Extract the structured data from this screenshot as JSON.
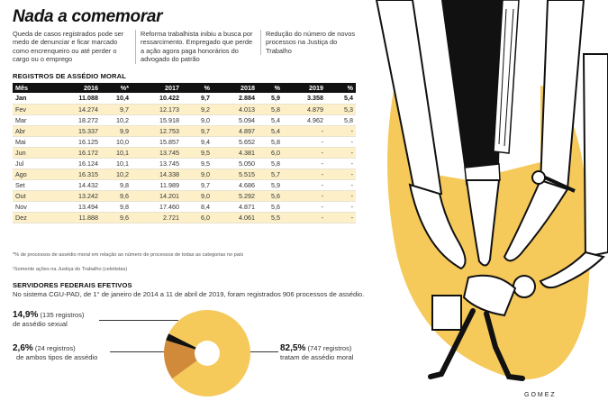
{
  "title": "Nada a comemorar",
  "intro": [
    "Queda de casos registrados pode ser medo de denunciar e ficar marcado como encrenqueiro ou até perder o cargo ou o emprego",
    "Reforma trabalhista inibiu a busca por ressarcimento. Empregado que perde a ação agora paga honorários do advogado do patrão",
    "Redução do número de novos processos na Justiça do Trabalho"
  ],
  "table": {
    "heading": "REGISTROS DE ASSÉDIO MORAL",
    "columns": [
      "Mês",
      "2016",
      "%*",
      "2017",
      "%",
      "2018",
      "%",
      "2019",
      "%"
    ],
    "rows": [
      [
        "Jan",
        "11.088",
        "10,4",
        "10.422",
        "9,7",
        "2.884",
        "5,9",
        "3.358",
        "5,4"
      ],
      [
        "Fev",
        "14.274",
        "9,7",
        "12.173",
        "9,2",
        "4.013",
        "5,8",
        "4.879",
        "5,3"
      ],
      [
        "Mar",
        "18.272",
        "10,2",
        "15.918",
        "9,0",
        "5.094",
        "5,4",
        "4.962",
        "5,8"
      ],
      [
        "Abr",
        "15.337",
        "9,9",
        "12.753",
        "9,7",
        "4.897",
        "5,4",
        "-",
        "-"
      ],
      [
        "Mai",
        "16.125",
        "10,0",
        "15.857",
        "9,4",
        "5.652",
        "5,8",
        "-",
        "-"
      ],
      [
        "Jun",
        "16.172",
        "10,1",
        "13.745",
        "9,5",
        "4.381",
        "6,0",
        "-",
        "-"
      ],
      [
        "Jul",
        "16.124",
        "10,1",
        "13.745",
        "9,5",
        "5.050",
        "5,8",
        "-",
        "-"
      ],
      [
        "Ago",
        "16.315",
        "10,2",
        "14.338",
        "9,0",
        "5.515",
        "5,7",
        "-",
        "-"
      ],
      [
        "Set",
        "14.432",
        "9,8",
        "11.989",
        "9,7",
        "4.686",
        "5,9",
        "-",
        "-"
      ],
      [
        "Out",
        "13.242",
        "9,6",
        "14.201",
        "9,0",
        "5.292",
        "5,6",
        "-",
        "-"
      ],
      [
        "Nov",
        "13.494",
        "9,8",
        "17.460",
        "8,4",
        "4.871",
        "5,6",
        "-",
        "-"
      ],
      [
        "Dez",
        "11.888",
        "9,6",
        "2.721",
        "6,0",
        "4.061",
        "5,5",
        "-",
        "-"
      ]
    ],
    "footnote": "*% de processos de assédio moral em relação ao número de processos de todas as categorias no país",
    "source_note": "Somente ações na Justiça do Trabalho (celetistas)"
  },
  "servidores": {
    "heading": "SERVIDORES FEDERAIS EFETIVOS",
    "subtitle": "No sistema CGU-PAD, de 1° de janeiro de 2014 a 11 de abril de 2019, foram registrados 906 processos de assédio.",
    "stats": [
      {
        "pct": "14,9%",
        "count": "(135 registros)",
        "label": "de assédio sexual",
        "value": 14.9,
        "color": "#d08a3a"
      },
      {
        "pct": "2,6%",
        "count": "(24 registros)",
        "label": "de ambos tipos de assédio",
        "value": 2.6,
        "color": "#111111"
      },
      {
        "pct": "82,5%",
        "count": "(747 registros)",
        "label": "tratam de assédio moral",
        "value": 82.5,
        "color": "#f5c95a"
      }
    ]
  },
  "signature": "GOMEZ",
  "colors": {
    "yellow": "#f5c95a",
    "orange": "#d08a3a",
    "black": "#111111",
    "row_tint": "#fdf0c8"
  }
}
